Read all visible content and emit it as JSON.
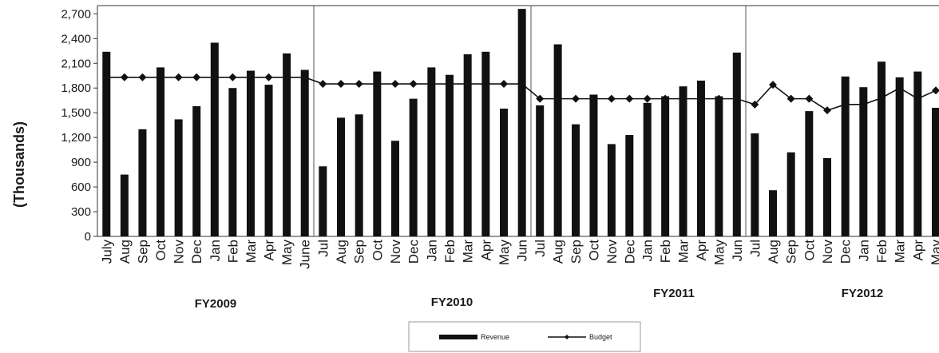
{
  "chart_data": {
    "type": "bar",
    "ylabel": "(Thousands)",
    "ylim": [
      0,
      2800
    ],
    "yticks": [
      0,
      300,
      600,
      900,
      1200,
      1500,
      1800,
      2100,
      2400,
      2700
    ],
    "ytick_labels": [
      "0",
      "300",
      "600",
      "900",
      "1,200",
      "1,500",
      "1,800",
      "2,100",
      "2,400",
      "2,700"
    ],
    "legend": {
      "position": "bottom",
      "items": [
        "Revenue",
        "Budget"
      ]
    },
    "groups": [
      {
        "name": "FY2009",
        "categories": [
          "July",
          "Aug",
          "Sep",
          "Oct",
          "Nov",
          "Dec",
          "Jan",
          "Feb",
          "Mar",
          "Apr",
          "May",
          "June"
        ]
      },
      {
        "name": "FY2010",
        "categories": [
          "Jul",
          "Aug",
          "Sep",
          "Oct",
          "Nov",
          "Dec",
          "Jan",
          "Feb",
          "Mar",
          "Apr",
          "May",
          "Jun"
        ]
      },
      {
        "name": "FY2011",
        "categories": [
          "Jul",
          "Aug",
          "Sep",
          "Oct",
          "Nov",
          "Dec",
          "Jan",
          "Feb",
          "Mar",
          "Apr",
          "May",
          "Jun"
        ]
      },
      {
        "name": "FY2012",
        "categories": [
          "Jul",
          "Aug",
          "Sep",
          "Oct",
          "Nov",
          "Dec",
          "Jan",
          "Feb",
          "Mar",
          "Apr",
          "May"
        ]
      }
    ],
    "series": [
      {
        "name": "Revenue",
        "type": "bar",
        "color": "#111111",
        "values": [
          2240,
          750,
          1300,
          2050,
          1420,
          1580,
          2350,
          1800,
          2010,
          1840,
          2220,
          2020,
          850,
          1440,
          1480,
          2000,
          1160,
          1670,
          2050,
          1960,
          2210,
          2240,
          1550,
          2760,
          1590,
          2330,
          1360,
          1720,
          1120,
          1230,
          1620,
          1700,
          1820,
          1890,
          1700,
          2230,
          1250,
          560,
          1020,
          1520,
          950,
          1940,
          1810,
          2120,
          1930,
          2000,
          1560
        ]
      },
      {
        "name": "Budget",
        "type": "line",
        "marker": "diamond",
        "color": "#111111",
        "values": [
          1930,
          1930,
          1930,
          1930,
          1930,
          1930,
          1930,
          1930,
          1930,
          1930,
          1930,
          1930,
          1850,
          1850,
          1850,
          1850,
          1850,
          1850,
          1850,
          1850,
          1850,
          1850,
          1850,
          1850,
          1670,
          1670,
          1670,
          1670,
          1670,
          1670,
          1670,
          1670,
          1670,
          1670,
          1670,
          1670,
          1600,
          1840,
          1670,
          1670,
          1530,
          1600,
          1600,
          1680,
          1800,
          1670,
          1770
        ]
      }
    ]
  }
}
